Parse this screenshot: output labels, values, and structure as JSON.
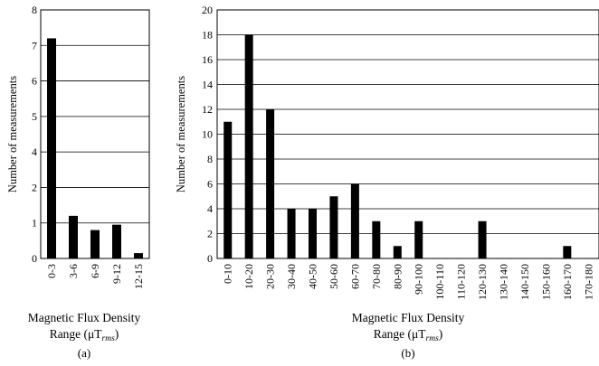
{
  "chart_data": [
    {
      "type": "bar",
      "panel_label": "(a)",
      "ylabel": "Number of measurements",
      "xlabel_line1": "Magnetic Flux Density",
      "xlabel_line2": "Range (μT",
      "xlabel_sub": "rms",
      "xlabel_close": ")",
      "ylim": [
        0,
        8
      ],
      "yticks": [
        "0",
        "1",
        "2",
        "4",
        "5",
        "6",
        "7",
        "8"
      ],
      "yscale": "nonuniform",
      "grid": true,
      "categories": [
        "0-3",
        "3-6",
        "6-9",
        "9-12",
        "12-15"
      ],
      "values": [
        7.2,
        1.2,
        0.8,
        0.95,
        0.15
      ]
    },
    {
      "type": "bar",
      "panel_label": "(b)",
      "ylabel": "Number of measurements",
      "xlabel_line1": "Magnetic Flux Density",
      "xlabel_line2": "Range (μT",
      "xlabel_sub": "rms",
      "xlabel_close": ")",
      "ylim": [
        0,
        20
      ],
      "yticks": [
        "0",
        "2",
        "4",
        "6",
        "8",
        "10",
        "12",
        "14",
        "16",
        "18",
        "20"
      ],
      "grid": true,
      "categories": [
        "0-10",
        "10-20",
        "20-30",
        "30-40",
        "40-50",
        "50-60",
        "60-70",
        "70-80",
        "80-90",
        "90-100",
        "100-110",
        "110-120",
        "120-130",
        "130-140",
        "140-150",
        "150-160",
        "160-170",
        "170-180"
      ],
      "values": [
        11,
        18,
        12,
        4,
        4,
        5,
        6,
        3,
        1,
        3,
        0,
        0,
        3,
        0,
        0,
        0,
        1,
        0
      ]
    }
  ]
}
